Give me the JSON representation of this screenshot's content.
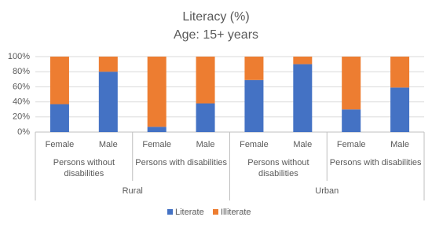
{
  "chart_data": {
    "type": "stacked-bar",
    "title": "Literacy (%)",
    "subtitle": "Age: 15+ years",
    "categories": [
      "Female",
      "Male",
      "Female",
      "Male",
      "Female",
      "Male",
      "Female",
      "Male"
    ],
    "groups": [
      "Persons without disabilities",
      "Persons with disabilities",
      "Persons without disabilities",
      "Persons with disabilities"
    ],
    "outer_groups": [
      "Rural",
      "Urban"
    ],
    "series": [
      {
        "name": "Literate",
        "color": "#4472c4",
        "values": [
          37,
          80,
          7,
          38,
          69,
          90,
          30,
          59
        ]
      },
      {
        "name": "Illiterate",
        "color": "#ed7d31",
        "values": [
          63,
          20,
          93,
          62,
          31,
          10,
          70,
          41
        ]
      }
    ],
    "ylim": [
      0,
      100
    ],
    "yticks": [
      {
        "value": 0,
        "label": "0%"
      },
      {
        "value": 20,
        "label": "20%"
      },
      {
        "value": 40,
        "label": "40%"
      },
      {
        "value": 60,
        "label": "60%"
      },
      {
        "value": 80,
        "label": "80%"
      },
      {
        "value": 100,
        "label": "100%"
      }
    ],
    "grid": true,
    "legend": "bottom"
  }
}
